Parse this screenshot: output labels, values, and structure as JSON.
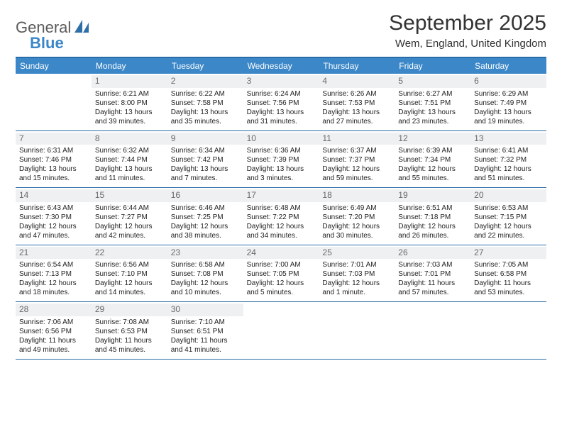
{
  "logo": {
    "text1": "General",
    "text2": "Blue"
  },
  "title": "September 2025",
  "location": "Wem, England, United Kingdom",
  "header_bg": "#3b87c8",
  "header_border": "#2a6ca8",
  "daynum_bg": "#eef0f2",
  "text_color": "#222222",
  "day_names": [
    "Sunday",
    "Monday",
    "Tuesday",
    "Wednesday",
    "Thursday",
    "Friday",
    "Saturday"
  ],
  "weeks": [
    [
      {
        "n": "",
        "sr": "",
        "ss": "",
        "dl": ""
      },
      {
        "n": "1",
        "sr": "Sunrise: 6:21 AM",
        "ss": "Sunset: 8:00 PM",
        "dl": "Daylight: 13 hours and 39 minutes."
      },
      {
        "n": "2",
        "sr": "Sunrise: 6:22 AM",
        "ss": "Sunset: 7:58 PM",
        "dl": "Daylight: 13 hours and 35 minutes."
      },
      {
        "n": "3",
        "sr": "Sunrise: 6:24 AM",
        "ss": "Sunset: 7:56 PM",
        "dl": "Daylight: 13 hours and 31 minutes."
      },
      {
        "n": "4",
        "sr": "Sunrise: 6:26 AM",
        "ss": "Sunset: 7:53 PM",
        "dl": "Daylight: 13 hours and 27 minutes."
      },
      {
        "n": "5",
        "sr": "Sunrise: 6:27 AM",
        "ss": "Sunset: 7:51 PM",
        "dl": "Daylight: 13 hours and 23 minutes."
      },
      {
        "n": "6",
        "sr": "Sunrise: 6:29 AM",
        "ss": "Sunset: 7:49 PM",
        "dl": "Daylight: 13 hours and 19 minutes."
      }
    ],
    [
      {
        "n": "7",
        "sr": "Sunrise: 6:31 AM",
        "ss": "Sunset: 7:46 PM",
        "dl": "Daylight: 13 hours and 15 minutes."
      },
      {
        "n": "8",
        "sr": "Sunrise: 6:32 AM",
        "ss": "Sunset: 7:44 PM",
        "dl": "Daylight: 13 hours and 11 minutes."
      },
      {
        "n": "9",
        "sr": "Sunrise: 6:34 AM",
        "ss": "Sunset: 7:42 PM",
        "dl": "Daylight: 13 hours and 7 minutes."
      },
      {
        "n": "10",
        "sr": "Sunrise: 6:36 AM",
        "ss": "Sunset: 7:39 PM",
        "dl": "Daylight: 13 hours and 3 minutes."
      },
      {
        "n": "11",
        "sr": "Sunrise: 6:37 AM",
        "ss": "Sunset: 7:37 PM",
        "dl": "Daylight: 12 hours and 59 minutes."
      },
      {
        "n": "12",
        "sr": "Sunrise: 6:39 AM",
        "ss": "Sunset: 7:34 PM",
        "dl": "Daylight: 12 hours and 55 minutes."
      },
      {
        "n": "13",
        "sr": "Sunrise: 6:41 AM",
        "ss": "Sunset: 7:32 PM",
        "dl": "Daylight: 12 hours and 51 minutes."
      }
    ],
    [
      {
        "n": "14",
        "sr": "Sunrise: 6:43 AM",
        "ss": "Sunset: 7:30 PM",
        "dl": "Daylight: 12 hours and 47 minutes."
      },
      {
        "n": "15",
        "sr": "Sunrise: 6:44 AM",
        "ss": "Sunset: 7:27 PM",
        "dl": "Daylight: 12 hours and 42 minutes."
      },
      {
        "n": "16",
        "sr": "Sunrise: 6:46 AM",
        "ss": "Sunset: 7:25 PM",
        "dl": "Daylight: 12 hours and 38 minutes."
      },
      {
        "n": "17",
        "sr": "Sunrise: 6:48 AM",
        "ss": "Sunset: 7:22 PM",
        "dl": "Daylight: 12 hours and 34 minutes."
      },
      {
        "n": "18",
        "sr": "Sunrise: 6:49 AM",
        "ss": "Sunset: 7:20 PM",
        "dl": "Daylight: 12 hours and 30 minutes."
      },
      {
        "n": "19",
        "sr": "Sunrise: 6:51 AM",
        "ss": "Sunset: 7:18 PM",
        "dl": "Daylight: 12 hours and 26 minutes."
      },
      {
        "n": "20",
        "sr": "Sunrise: 6:53 AM",
        "ss": "Sunset: 7:15 PM",
        "dl": "Daylight: 12 hours and 22 minutes."
      }
    ],
    [
      {
        "n": "21",
        "sr": "Sunrise: 6:54 AM",
        "ss": "Sunset: 7:13 PM",
        "dl": "Daylight: 12 hours and 18 minutes."
      },
      {
        "n": "22",
        "sr": "Sunrise: 6:56 AM",
        "ss": "Sunset: 7:10 PM",
        "dl": "Daylight: 12 hours and 14 minutes."
      },
      {
        "n": "23",
        "sr": "Sunrise: 6:58 AM",
        "ss": "Sunset: 7:08 PM",
        "dl": "Daylight: 12 hours and 10 minutes."
      },
      {
        "n": "24",
        "sr": "Sunrise: 7:00 AM",
        "ss": "Sunset: 7:05 PM",
        "dl": "Daylight: 12 hours and 5 minutes."
      },
      {
        "n": "25",
        "sr": "Sunrise: 7:01 AM",
        "ss": "Sunset: 7:03 PM",
        "dl": "Daylight: 12 hours and 1 minute."
      },
      {
        "n": "26",
        "sr": "Sunrise: 7:03 AM",
        "ss": "Sunset: 7:01 PM",
        "dl": "Daylight: 11 hours and 57 minutes."
      },
      {
        "n": "27",
        "sr": "Sunrise: 7:05 AM",
        "ss": "Sunset: 6:58 PM",
        "dl": "Daylight: 11 hours and 53 minutes."
      }
    ],
    [
      {
        "n": "28",
        "sr": "Sunrise: 7:06 AM",
        "ss": "Sunset: 6:56 PM",
        "dl": "Daylight: 11 hours and 49 minutes."
      },
      {
        "n": "29",
        "sr": "Sunrise: 7:08 AM",
        "ss": "Sunset: 6:53 PM",
        "dl": "Daylight: 11 hours and 45 minutes."
      },
      {
        "n": "30",
        "sr": "Sunrise: 7:10 AM",
        "ss": "Sunset: 6:51 PM",
        "dl": "Daylight: 11 hours and 41 minutes."
      },
      {
        "n": "",
        "sr": "",
        "ss": "",
        "dl": ""
      },
      {
        "n": "",
        "sr": "",
        "ss": "",
        "dl": ""
      },
      {
        "n": "",
        "sr": "",
        "ss": "",
        "dl": ""
      },
      {
        "n": "",
        "sr": "",
        "ss": "",
        "dl": ""
      }
    ]
  ]
}
